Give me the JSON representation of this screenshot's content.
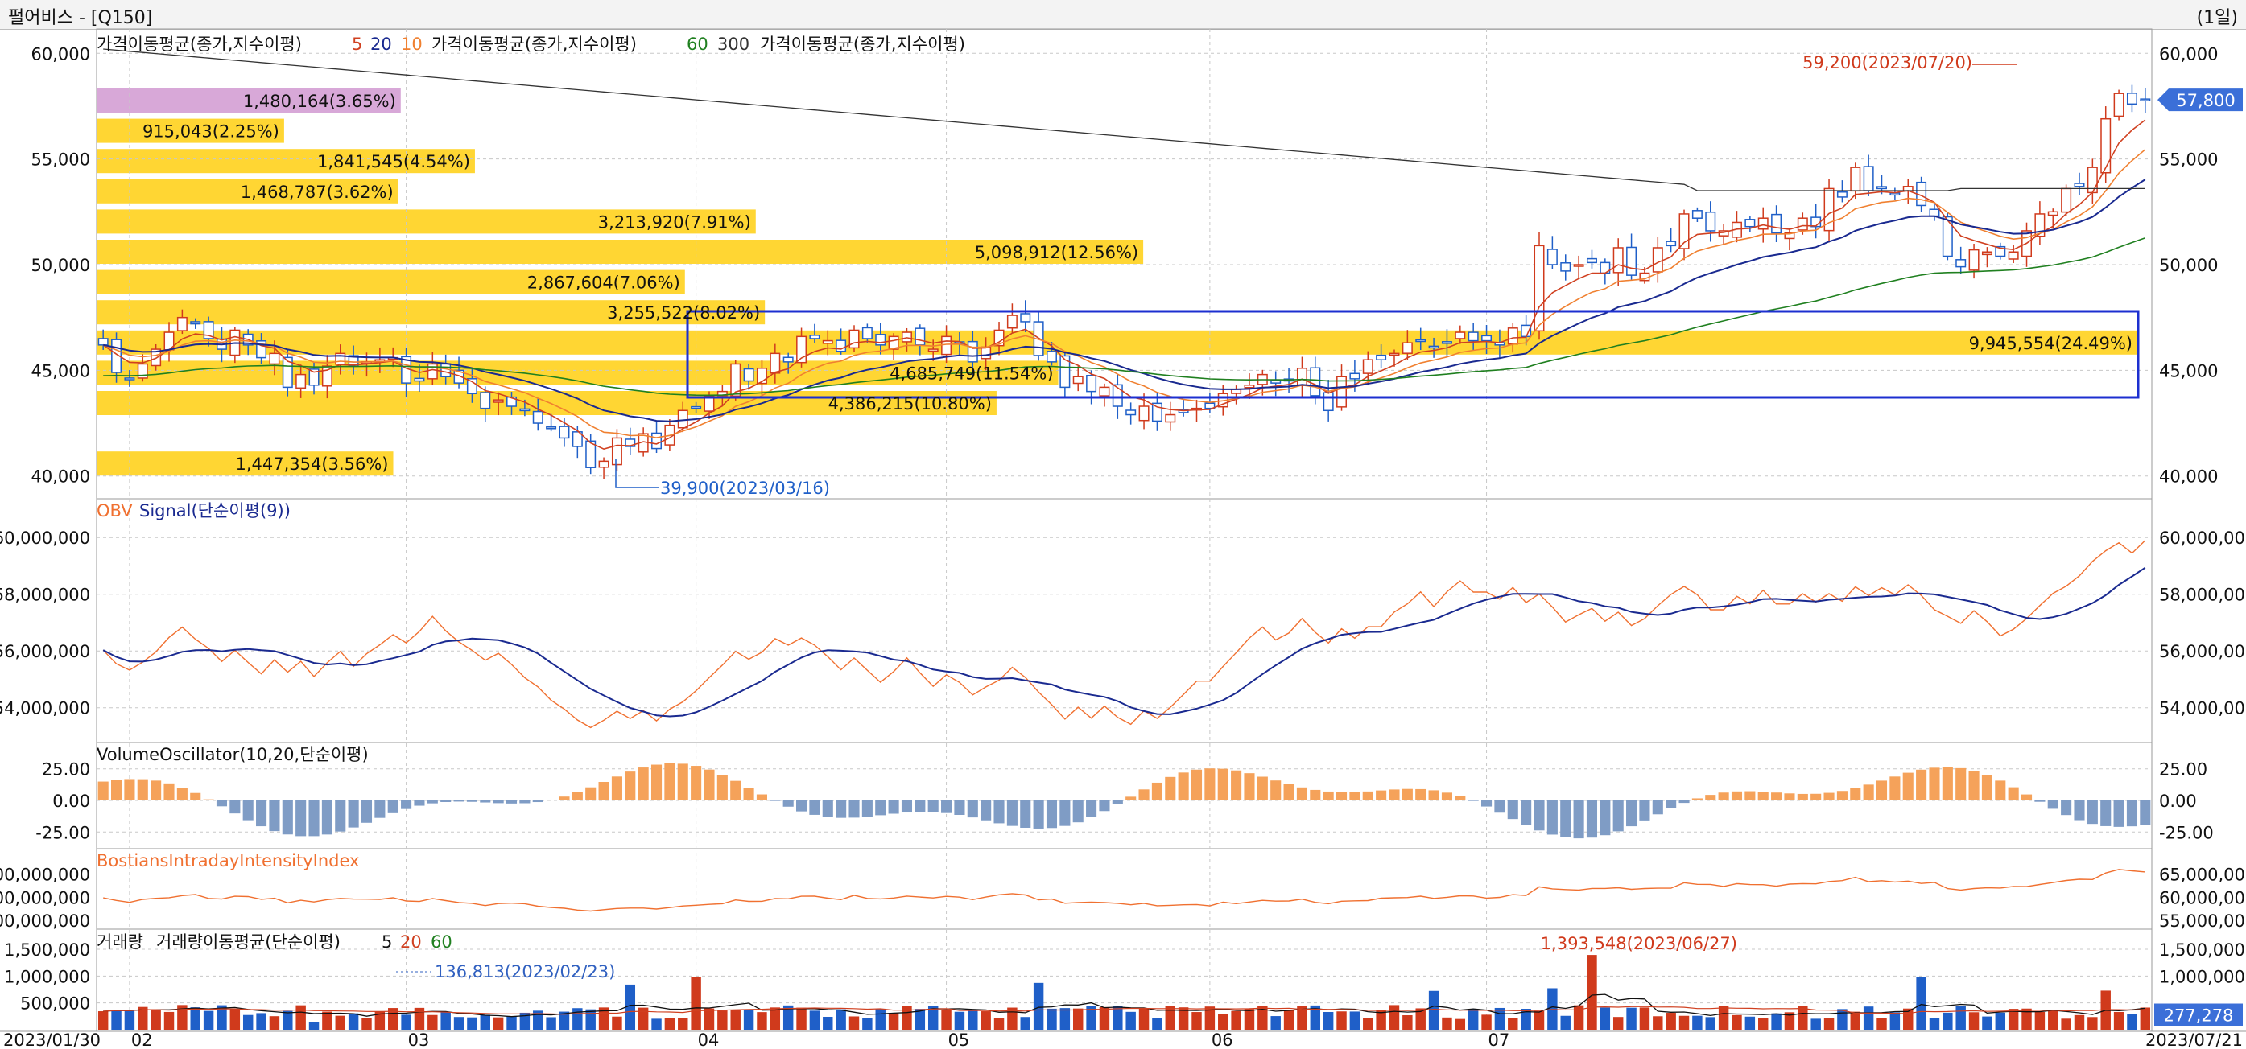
{
  "window": {
    "title": "펄어비스 - [Q150]",
    "period": "(1일)"
  },
  "x_axis": {
    "start_label": "2023/01/30",
    "end_label": "2023/07/21",
    "months": [
      "02",
      "03",
      "04",
      "05",
      "06",
      "07"
    ]
  },
  "panels": {
    "price": {
      "legend": [
        {
          "text": "가격이동평균(종가,지수이평)",
          "color": "#111111"
        },
        {
          "text": "5",
          "color": "#d04020"
        },
        {
          "text": "20",
          "color": "#1a2a90"
        },
        {
          "text": "10",
          "color": "#f08030"
        },
        {
          "text": "가격이동평균(종가,지수이평)",
          "color": "#111111"
        },
        {
          "text": "60",
          "color": "#208020"
        },
        {
          "text": "300",
          "color": "#333333"
        },
        {
          "text": "가격이동평균(종가,지수이평)",
          "color": "#111111"
        }
      ],
      "ticks": [
        "60,000",
        "55,000",
        "50,000",
        "45,000",
        "40,000"
      ],
      "current_price": "57,800",
      "high_marker": "59,200(2023/07/20)",
      "low_marker": "39,900(2023/03/16)",
      "volume_profile": [
        {
          "text": "1,480,164(3.65%)",
          "highlight": true
        },
        {
          "text": "915,043(2.25%)",
          "highlight": false
        },
        {
          "text": "1,841,545(4.54%)",
          "highlight": false
        },
        {
          "text": "1,468,787(3.62%)",
          "highlight": false
        },
        {
          "text": "3,213,920(7.91%)",
          "highlight": false
        },
        {
          "text": "5,098,912(12.56%)",
          "highlight": false
        },
        {
          "text": "2,867,604(7.06%)",
          "highlight": false
        },
        {
          "text": "3,255,522(8.02%)",
          "highlight": false
        },
        {
          "text": "9,945,554(24.49%)",
          "highlight": false
        },
        {
          "text": "4,685,749(11.54%)",
          "highlight": false
        },
        {
          "text": "4,386,215(10.80%)",
          "highlight": false
        },
        {
          "text": "",
          "highlight": false
        },
        {
          "text": "1,447,354(3.56%)",
          "highlight": false
        }
      ],
      "profile_color": "#ffd633",
      "profile_highlight_color": "#d8a8d8"
    },
    "obv": {
      "legend": [
        {
          "text": "OBV",
          "color": "#f07030"
        },
        {
          "text": "Signal(단순이평(9))",
          "color": "#1a2a90"
        }
      ],
      "ticks": [
        "60,000,000",
        "58,000,000",
        "56,000,000",
        "54,000,000"
      ]
    },
    "vo": {
      "legend": [
        {
          "text": "VolumeOscillator(10,20,단순이평)",
          "color": "#111111"
        }
      ],
      "ticks": [
        "25.00",
        "0.00",
        "-25.00"
      ],
      "pos_color": "#f5a25a",
      "neg_color": "#7f9cc5"
    },
    "bii": {
      "legend": [
        {
          "text": "BostiansIntradayIntensityIndex",
          "color": "#f07030"
        }
      ],
      "ticks_right": [
        "65,000,000",
        "60,000,000",
        "55,000,000"
      ],
      "ticks_left": [
        "00,000,000",
        "00,000,000",
        "00,000,000"
      ]
    },
    "volume": {
      "legend": [
        {
          "text": "거래량",
          "color": "#111111"
        },
        {
          "text": "거래량이동평균(단순이평)",
          "color": "#111111"
        },
        {
          "text": "5",
          "color": "#111111"
        },
        {
          "text": "20",
          "color": "#d04020"
        },
        {
          "text": "60",
          "color": "#208020"
        }
      ],
      "ticks": [
        "1,500,000",
        "1,000,000",
        "500,000"
      ],
      "current_volume": "277,278",
      "hidden_tick": "500,000",
      "high_marker": "1,393,548(2023/06/27)",
      "low_marker": "136,813(2023/02/23)"
    }
  },
  "colors": {
    "up": "#d03a1c",
    "down": "#1f5fc8",
    "box": "#1c2fd0"
  },
  "chart_data": {
    "type": "candlestick",
    "title": "펄어비스 - [Q150]",
    "period": "1일",
    "x_range": [
      "2023/01/30",
      "2023/07/21"
    ],
    "y_range": [
      39000,
      61000
    ],
    "closes": [
      46200,
      44900,
      44600,
      45300,
      46000,
      46800,
      47500,
      47200,
      46500,
      46000,
      46900,
      46200,
      45600,
      45800,
      44200,
      44800,
      44300,
      45200,
      45800,
      45200,
      45400,
      45500,
      45600,
      44400,
      44500,
      45300,
      44700,
      44400,
      43900,
      43200,
      43600,
      43300,
      43100,
      42500,
      42300,
      41800,
      41400,
      40400,
      40700,
      41800,
      41400,
      42000,
      41300,
      42400,
      43100,
      43200,
      43800,
      44000,
      45300,
      44500,
      45100,
      45800,
      45400,
      46600,
      46500,
      46400,
      45900,
      46900,
      46500,
      46200,
      46600,
      46800,
      46200,
      46000,
      46600,
      46300,
      45400,
      46100,
      46900,
      47600,
      47300,
      45700,
      45400,
      44200,
      44700,
      44000,
      44200,
      43300,
      42900,
      43300,
      42600,
      42900,
      43000,
      43200,
      43200,
      43900,
      44100,
      44300,
      44800,
      44400,
      44500,
      45100,
      43800,
      43100,
      44700,
      44600,
      45500,
      45500,
      45800,
      46300,
      46400,
      46100,
      46300,
      46800,
      46400,
      46400,
      46200,
      47000,
      46600,
      50900,
      50000,
      49700,
      50000,
      50100,
      49600,
      50800,
      49500,
      49600,
      50800,
      50900,
      52400,
      52200,
      51600,
      51600,
      52000,
      51800,
      52200,
      51500,
      51500,
      52200,
      51800,
      53600,
      53200,
      54600,
      53500,
      53600,
      53300,
      53700,
      52800,
      52300,
      50400,
      49900,
      50700,
      50600,
      50400,
      50600,
      51600,
      52400,
      52500,
      53600,
      53700,
      54600,
      56900,
      58100,
      57600,
      57800
    ],
    "volume_series_sample": [
      400000,
      350000,
      450000,
      600000,
      420000,
      380000,
      300000
    ],
    "volume_profile_percent": [
      3.65,
      2.25,
      4.54,
      3.62,
      7.91,
      12.56,
      7.06,
      8.02,
      24.49,
      11.54,
      10.8,
      0,
      3.56
    ],
    "annotations": {
      "price_high": "59,200(2023/07/20)",
      "price_low": "39,900(2023/03/16)",
      "volume_high": "1,393,548(2023/06/27)",
      "volume_low": "136,813(2023/02/23)"
    }
  }
}
